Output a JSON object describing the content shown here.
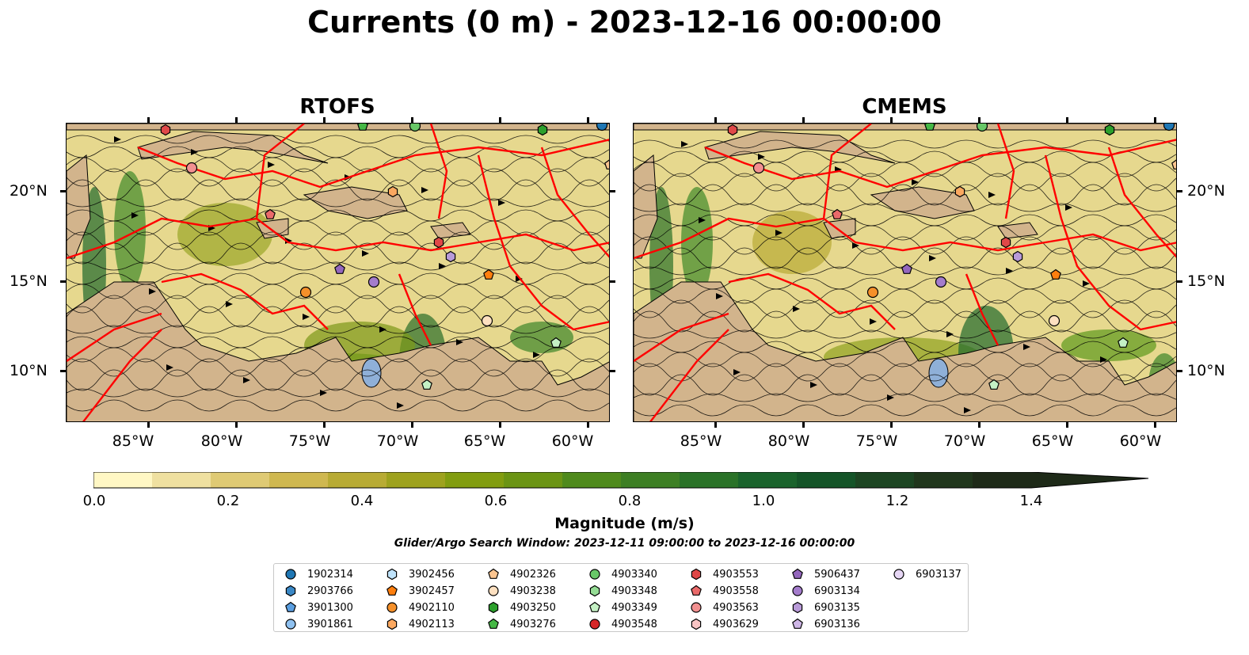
{
  "title": "Currents (0 m) - 2023-12-16 00:00:00",
  "panels": [
    {
      "title": "RTOFS"
    },
    {
      "title": "CMEMS"
    }
  ],
  "lat_labels": [
    "20°N",
    "15°N",
    "10°N"
  ],
  "lon_labels": [
    "85°W",
    "80°W",
    "75°W",
    "70°W",
    "65°W",
    "60°W"
  ],
  "colorbar": {
    "label": "Magnitude (m/s)",
    "ticks": [
      "0.0",
      "0.2",
      "0.4",
      "0.6",
      "0.8",
      "1.0",
      "1.2",
      "1.4"
    ],
    "colors": [
      "#fff7c4",
      "#efe0a0",
      "#dfca74",
      "#cfb850",
      "#b8ab34",
      "#9ea21e",
      "#829d10",
      "#6b9414",
      "#4f8a1c",
      "#3d7f24",
      "#2a7228",
      "#1a632c",
      "#145428",
      "#1c4522",
      "#20361c",
      "#1e2a18"
    ],
    "extend": "max"
  },
  "search_window": "Glider/Argo Search Window: 2023-12-11 09:00:00 to 2023-12-16 00:00:00",
  "colors": {
    "land": "#d2b48c",
    "eez_lines": "#ff0000",
    "lakes": "#8fb0d8",
    "streamlines": "#000000"
  },
  "legend": [
    {
      "label": "1902314",
      "shape": "circle",
      "color": "#1f77b4"
    },
    {
      "label": "2903766",
      "shape": "hexagon",
      "color": "#3a88c6"
    },
    {
      "label": "3901300",
      "shape": "pentagon",
      "color": "#5a9ee0"
    },
    {
      "label": "3901861",
      "shape": "circle",
      "color": "#8fc1f0"
    },
    {
      "label": "3902456",
      "shape": "hexagon",
      "color": "#bfe3fb"
    },
    {
      "label": "3902457",
      "shape": "pentagon",
      "color": "#ff7f0e"
    },
    {
      "label": "4902110",
      "shape": "circle",
      "color": "#f5902a"
    },
    {
      "label": "4902113",
      "shape": "hexagon",
      "color": "#fba860"
    },
    {
      "label": "4902326",
      "shape": "pentagon",
      "color": "#fcc590"
    },
    {
      "label": "4903238",
      "shape": "circle",
      "color": "#fde0c0"
    },
    {
      "label": "4903250",
      "shape": "hexagon",
      "color": "#2ca02c"
    },
    {
      "label": "4903276",
      "shape": "pentagon",
      "color": "#46b846"
    },
    {
      "label": "4903340",
      "shape": "circle",
      "color": "#68c868"
    },
    {
      "label": "4903348",
      "shape": "hexagon",
      "color": "#94dc94"
    },
    {
      "label": "4903349",
      "shape": "pentagon",
      "color": "#c4f0c4"
    },
    {
      "label": "4903548",
      "shape": "circle",
      "color": "#d62728"
    },
    {
      "label": "4903553",
      "shape": "hexagon",
      "color": "#e04848"
    },
    {
      "label": "4903558",
      "shape": "pentagon",
      "color": "#ea6a6a"
    },
    {
      "label": "4903563",
      "shape": "circle",
      "color": "#f29090"
    },
    {
      "label": "4903629",
      "shape": "hexagon",
      "color": "#f8c4c4"
    },
    {
      "label": "5906437",
      "shape": "pentagon",
      "color": "#9467bd"
    },
    {
      "label": "6903134",
      "shape": "circle",
      "color": "#a47ccc"
    },
    {
      "label": "6903135",
      "shape": "hexagon",
      "color": "#b89ad8"
    },
    {
      "label": "6903136",
      "shape": "pentagon",
      "color": "#ceb6e6"
    },
    {
      "label": "6903137",
      "shape": "circle",
      "color": "#e6d6f4"
    }
  ]
}
